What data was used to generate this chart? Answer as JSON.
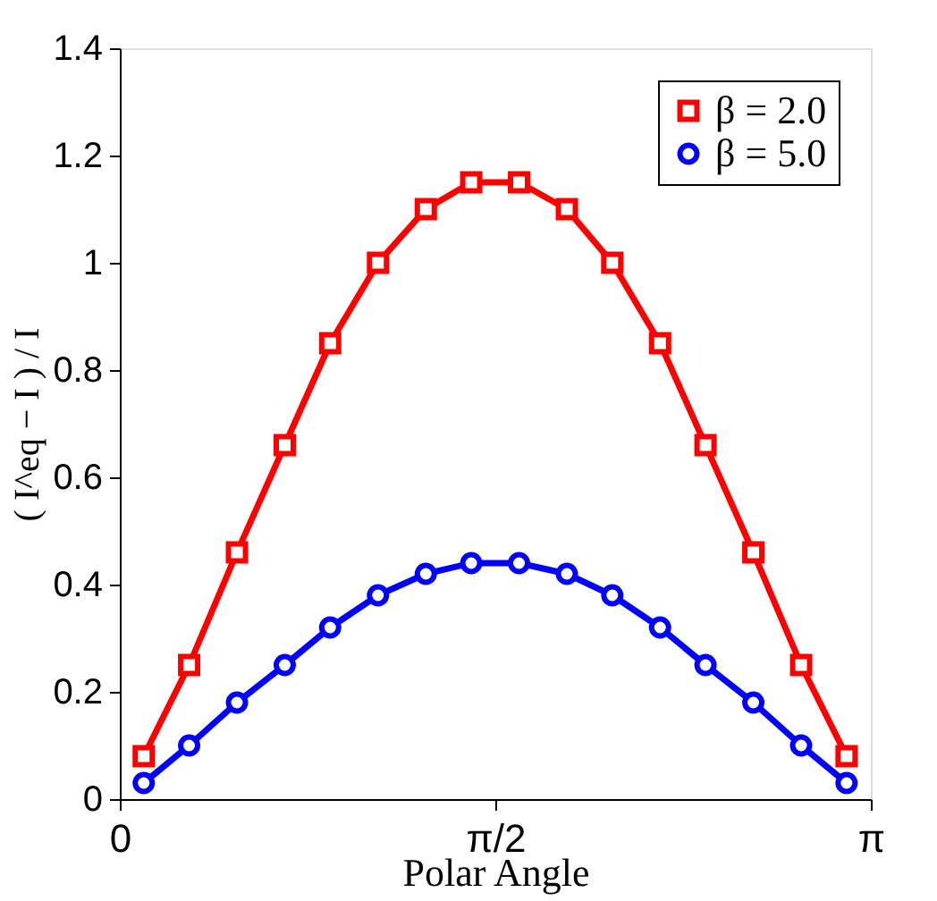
{
  "chart_data": {
    "type": "line",
    "xlabel": "Polar Angle",
    "ylabel": "( I^eq − I ) / I",
    "x": [
      0.1,
      0.29,
      0.49,
      0.69,
      0.88,
      1.08,
      1.28,
      1.47,
      1.67,
      1.87,
      2.06,
      2.26,
      2.45,
      2.65,
      2.85,
      3.04
    ],
    "series": [
      {
        "name": "β = 2.0",
        "color": "#ff0000",
        "marker": "square",
        "values": [
          0.08,
          0.25,
          0.46,
          0.66,
          0.85,
          1.0,
          1.1,
          1.15,
          1.15,
          1.1,
          1.0,
          0.85,
          0.66,
          0.46,
          0.25,
          0.08
        ]
      },
      {
        "name": "β = 5.0",
        "color": "#0000ff",
        "marker": "circle",
        "values": [
          0.03,
          0.1,
          0.18,
          0.25,
          0.32,
          0.38,
          0.42,
          0.44,
          0.44,
          0.42,
          0.38,
          0.32,
          0.25,
          0.18,
          0.1,
          0.03
        ]
      }
    ],
    "xlim": [
      0,
      3.14159
    ],
    "xticks": [
      0,
      {
        "value": 1.5708,
        "label": "π/2"
      },
      {
        "value": 3.14159,
        "label": "π"
      }
    ],
    "ylim": [
      0,
      1.4
    ],
    "yticks": [
      0,
      0.2,
      0.4,
      0.6,
      0.8,
      1,
      1.2,
      1.4
    ],
    "grid": false,
    "legend": "top right",
    "line_style": "solid"
  }
}
